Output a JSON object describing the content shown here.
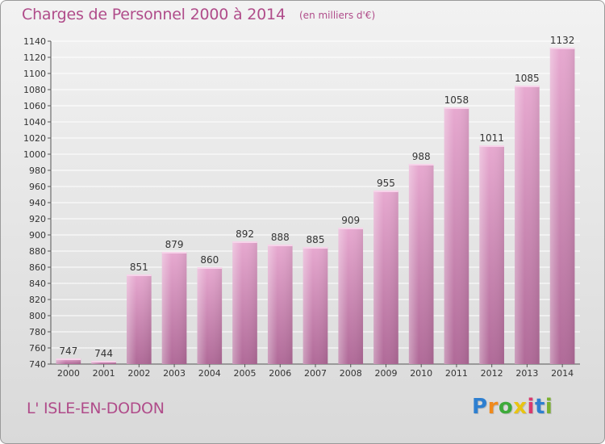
{
  "title": "Charges de Personnel 2000 à 2014",
  "subtitle": "(en milliers d'€)",
  "place": "L' ISLE-EN-DODON",
  "logo": {
    "text": "Proxiti",
    "colors": [
      "#2e7fd0",
      "#f08a1c",
      "#3daa3a",
      "#e8c413",
      "#d93a6e",
      "#2e7fd0",
      "#7ab02e"
    ]
  },
  "colors": {
    "bar_top": "#e7a9d0",
    "bar_bottom": "#b06a98",
    "text": "#b04c8a"
  },
  "chart_data": {
    "type": "bar",
    "title": "Charges de Personnel 2000 à 2014",
    "subtitle": "(en milliers d'€)",
    "categories": [
      "2000",
      "2001",
      "2002",
      "2003",
      "2004",
      "2005",
      "2006",
      "2007",
      "2008",
      "2009",
      "2010",
      "2011",
      "2012",
      "2013",
      "2014"
    ],
    "values": [
      747,
      744,
      851,
      879,
      860,
      892,
      888,
      885,
      909,
      955,
      988,
      1058,
      1011,
      1085,
      1132
    ],
    "ylim": [
      740,
      1140
    ],
    "yticks": [
      740,
      760,
      780,
      800,
      820,
      840,
      860,
      880,
      900,
      920,
      940,
      960,
      980,
      1000,
      1020,
      1040,
      1060,
      1080,
      1100,
      1120,
      1140
    ],
    "grid": true,
    "xlabel": "",
    "ylabel": ""
  }
}
